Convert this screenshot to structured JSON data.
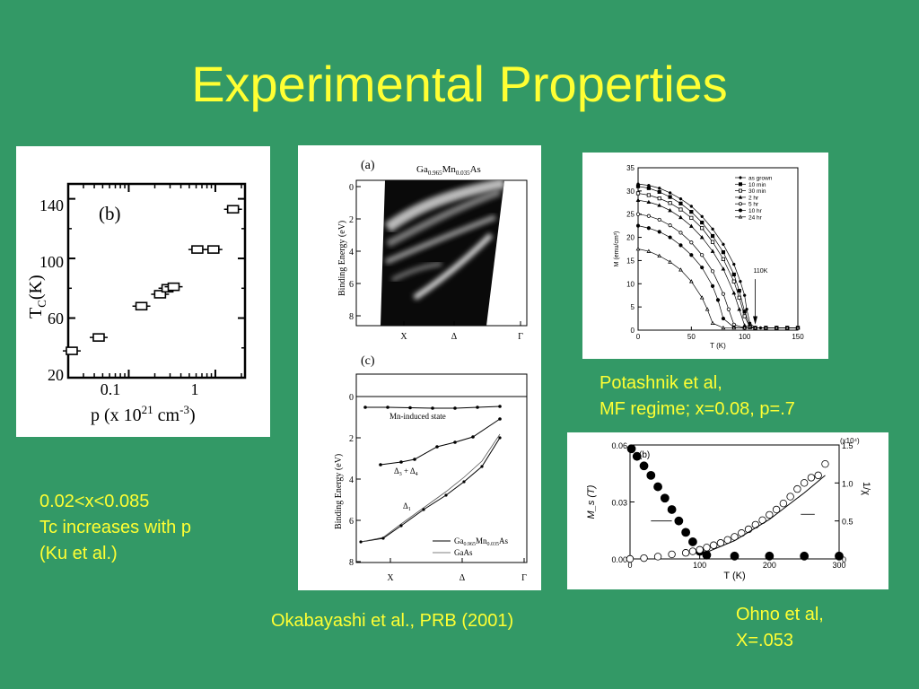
{
  "slide": {
    "title": "Experimental Properties"
  },
  "captions": {
    "ku": [
      "0.02<x<0.085",
      "Tc increases with p",
      "(Ku et al.)"
    ],
    "okabayashi": "Okabayashi et al., PRB (2001)",
    "potashnik": [
      "Potashnik et al,",
      "MF regime; x=0.08, p=.7"
    ],
    "ohno": [
      "Ohno et al,",
      "X=.053"
    ]
  },
  "figures": {
    "ku": {
      "panel_label": "(b)",
      "ylabel": "T",
      "ylabel_sub": "C",
      "ylabel_unit": "(K)",
      "xlabel": "p (x 10",
      "xlabel_exp": "21",
      "xlabel_unit": " cm",
      "xlabel_unit_exp": "-3",
      "xlabel_close": ")",
      "yticks": [
        "140",
        "100",
        "60",
        "20"
      ],
      "xticks": [
        "0.1",
        "1"
      ]
    },
    "okabayashi_a": {
      "panel_label": "(a)",
      "material": "Ga",
      "material_sub1": "0.965",
      "material_mn": "Mn",
      "material_sub2": "0.035",
      "material_as": "As",
      "ylabel": "Binding Energy (eV)",
      "yticks": [
        "0",
        "2",
        "4",
        "6",
        "8"
      ],
      "xticks": [
        "X",
        "Δ",
        "Γ"
      ]
    },
    "okabayashi_c": {
      "panel_label": "(c)",
      "ylabel": "Binding Energy (eV)",
      "yticks": [
        "0",
        "2",
        "4",
        "6",
        "8"
      ],
      "xticks": [
        "X",
        "Δ",
        "Γ"
      ],
      "annotation_mn": "Mn-induced state",
      "annotation_delta34": "Δ",
      "annotation_delta34_sub": "3",
      "annotation_delta34_mid": " + Δ",
      "annotation_delta34_sub2": "4",
      "annotation_delta1": "Δ",
      "annotation_delta1_sub": "1",
      "legend": {
        "gamnas": "Ga",
        "gamnas_sub1": "0.965",
        "gamnas_mn": "Mn",
        "gamnas_sub2": "0.035",
        "gamnas_as": "As",
        "gaas": "GaAs"
      }
    }
  },
  "chart_data": [
    {
      "type": "scatter",
      "title": "(b)",
      "xlabel": "p (x 10^21 cm^-3)",
      "ylabel": "T_C (K)",
      "xscale": "log",
      "xlim": [
        0.02,
        2.2
      ],
      "ylim": [
        20,
        150
      ],
      "series": [
        {
          "x": [
            0.022,
            0.045,
            0.14,
            0.23,
            0.28,
            0.33,
            0.62,
            0.95,
            1.6
          ],
          "y": [
            38,
            47,
            68,
            76,
            80,
            81,
            106,
            106,
            133
          ]
        }
      ]
    },
    {
      "type": "line",
      "xlabel": "T (K)",
      "ylabel": "M (emu/cm³)",
      "xlim": [
        0,
        150
      ],
      "ylim": [
        0,
        35
      ],
      "xticks": [
        "0",
        "50",
        "100",
        "150"
      ],
      "yticks": [
        "0",
        "5",
        "10",
        "15",
        "20",
        "25",
        "30",
        "35"
      ],
      "legend_position": "top-right",
      "annotation": "110K",
      "series": [
        {
          "name": "as grown",
          "marker": "star",
          "x": [
            0,
            10,
            20,
            30,
            40,
            50,
            60,
            70,
            80,
            90,
            96,
            100,
            102,
            105,
            110,
            115,
            120,
            130,
            140,
            150
          ],
          "y": [
            31.5,
            31.2,
            30.6,
            29.6,
            28.3,
            26.7,
            24.5,
            21.8,
            18.5,
            14.2,
            10.5,
            7.5,
            4.5,
            1.5,
            0.5,
            0.5,
            0.5,
            0.5,
            0.5,
            0.5
          ]
        },
        {
          "name": "10 min",
          "marker": "filled-square",
          "x": [
            0,
            10,
            20,
            30,
            40,
            50,
            60,
            70,
            80,
            90,
            95,
            100,
            105,
            110,
            120,
            130,
            140,
            150
          ],
          "y": [
            31,
            30.6,
            29.8,
            28.7,
            27.3,
            25.5,
            23.2,
            20.3,
            16.8,
            12,
            8.5,
            4,
            0.8,
            0.5,
            0.5,
            0.5,
            0.5,
            0.5
          ]
        },
        {
          "name": "30 min",
          "marker": "open-square",
          "x": [
            0,
            10,
            20,
            30,
            40,
            50,
            60,
            70,
            80,
            90,
            95,
            100,
            105,
            110,
            120,
            130,
            140,
            150
          ],
          "y": [
            29.5,
            29.1,
            28.4,
            27.4,
            26,
            24.2,
            22,
            19,
            15.3,
            10.5,
            7,
            3,
            0.6,
            0.5,
            0.5,
            0.5,
            0.5,
            0.5
          ]
        },
        {
          "name": "2 hr",
          "marker": "filled-triangle",
          "x": [
            0,
            10,
            20,
            30,
            40,
            50,
            60,
            70,
            80,
            90,
            95,
            100,
            110,
            120,
            130,
            140,
            150
          ],
          "y": [
            28,
            27.6,
            26.9,
            25.8,
            24.3,
            22.4,
            20,
            17,
            13.2,
            8,
            4.5,
            1,
            0.5,
            0.5,
            0.5,
            0.5,
            0.5
          ]
        },
        {
          "name": "5 hr",
          "marker": "open-circle",
          "x": [
            0,
            10,
            20,
            30,
            40,
            50,
            60,
            70,
            80,
            85,
            90,
            100,
            110,
            120,
            130,
            140,
            150
          ],
          "y": [
            25,
            24.6,
            23.8,
            22.6,
            21,
            18.9,
            16.2,
            12.7,
            7.8,
            4.5,
            1.2,
            0.5,
            0.5,
            0.5,
            0.5,
            0.5,
            0.5
          ]
        },
        {
          "name": "10 hr",
          "marker": "filled-circle",
          "x": [
            0,
            10,
            20,
            30,
            40,
            50,
            60,
            70,
            75,
            80,
            90,
            100,
            110,
            120,
            130,
            140,
            150
          ],
          "y": [
            22.5,
            22,
            21.2,
            20,
            18.3,
            16.2,
            13.5,
            9.5,
            6.5,
            2.5,
            0.6,
            0.5,
            0.5,
            0.5,
            0.5,
            0.5,
            0.5
          ]
        },
        {
          "name": "24 hr",
          "marker": "open-triangle",
          "x": [
            0,
            10,
            20,
            30,
            40,
            50,
            60,
            65,
            70,
            80,
            90,
            100,
            110,
            120,
            130,
            140,
            150
          ],
          "y": [
            17.5,
            17,
            16,
            14.7,
            13,
            10.5,
            7,
            4.5,
            1.5,
            0.5,
            0.5,
            0.5,
            0.5,
            0.5,
            0.5,
            0.5,
            0.5
          ]
        }
      ]
    },
    {
      "type": "scatter",
      "title": "(b)",
      "xlabel": "T (K)",
      "ylabel": "M_s (T)",
      "ylabel_right": "1/χ",
      "right_axis_multiplier": "(x10⁴)",
      "xlim": [
        0,
        300
      ],
      "ylim": [
        0,
        0.06
      ],
      "ylim_right": [
        0,
        1.5
      ],
      "xticks": [
        "0",
        "100",
        "200",
        "300"
      ],
      "yticks": [
        "0.00",
        "0.03",
        "0.06"
      ],
      "yticks_right": [
        "0",
        "0.5",
        "1.0",
        "1.5"
      ],
      "series": [
        {
          "axis": "left",
          "marker": "filled-circle",
          "x": [
            2,
            10,
            20,
            30,
            40,
            50,
            60,
            70,
            80,
            90,
            100,
            110,
            150,
            200,
            250,
            300
          ],
          "y": [
            0.058,
            0.054,
            0.049,
            0.044,
            0.038,
            0.032,
            0.026,
            0.02,
            0.014,
            0.009,
            0.004,
            0.002,
            0.0015,
            0.0015,
            0.0015,
            0.0015
          ]
        },
        {
          "axis": "right",
          "marker": "open-circle",
          "x": [
            0,
            20,
            40,
            60,
            80,
            90,
            100,
            110,
            120,
            130,
            140,
            150,
            160,
            170,
            180,
            190,
            200,
            210,
            220,
            230,
            240,
            250,
            260,
            270,
            280
          ],
          "y": [
            0,
            0.01,
            0.03,
            0.06,
            0.08,
            0.1,
            0.12,
            0.15,
            0.18,
            0.21,
            0.25,
            0.29,
            0.34,
            0.39,
            0.45,
            0.51,
            0.58,
            0.65,
            0.73,
            0.82,
            0.92,
            1.0,
            1.07,
            1.1,
            1.25
          ]
        },
        {
          "axis": "right",
          "marker": "line",
          "x": [
            100,
            150,
            200,
            250,
            280
          ],
          "y": [
            0.05,
            0.24,
            0.52,
            0.87,
            1.1
          ]
        }
      ]
    }
  ]
}
